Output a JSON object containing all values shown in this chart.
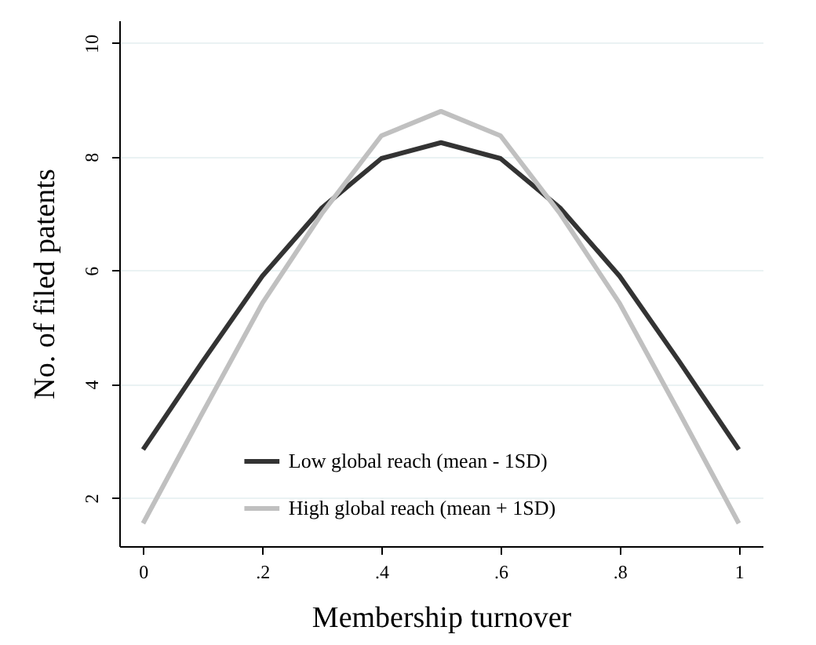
{
  "chart_data": {
    "type": "line",
    "xlabel": "Membership turnover",
    "ylabel": "No. of filed patents",
    "x": [
      0,
      0.1,
      0.2,
      0.3,
      0.4,
      0.5,
      0.6,
      0.7,
      0.8,
      0.9,
      1
    ],
    "series": [
      {
        "name": "Low global reach (mean - 1SD)",
        "color": "#333333",
        "values": [
          2.85,
          4.4,
          5.9,
          7.1,
          7.97,
          8.25,
          7.97,
          7.1,
          5.9,
          4.4,
          2.85
        ]
      },
      {
        "name": "High global reach (mean + 1SD)",
        "color": "#c0c0c0",
        "values": [
          1.55,
          3.5,
          5.42,
          7.0,
          8.37,
          8.8,
          8.37,
          7.0,
          5.42,
          3.5,
          1.55
        ]
      }
    ],
    "xlim": [
      -0.04,
      1.04
    ],
    "ylim": [
      1.15,
      10.4
    ],
    "xticks": [
      0,
      {
        "value": 0.2,
        "label": ".2"
      },
      {
        "value": 0.4,
        "label": ".4"
      },
      {
        "value": 0.6,
        "label": ".6"
      },
      {
        "value": 0.8,
        "label": ".8"
      },
      1
    ],
    "yticks": [
      2,
      4,
      6,
      8,
      10
    ],
    "grid": "y",
    "legend": "bottom",
    "marker": "none",
    "line_style": "solid"
  }
}
